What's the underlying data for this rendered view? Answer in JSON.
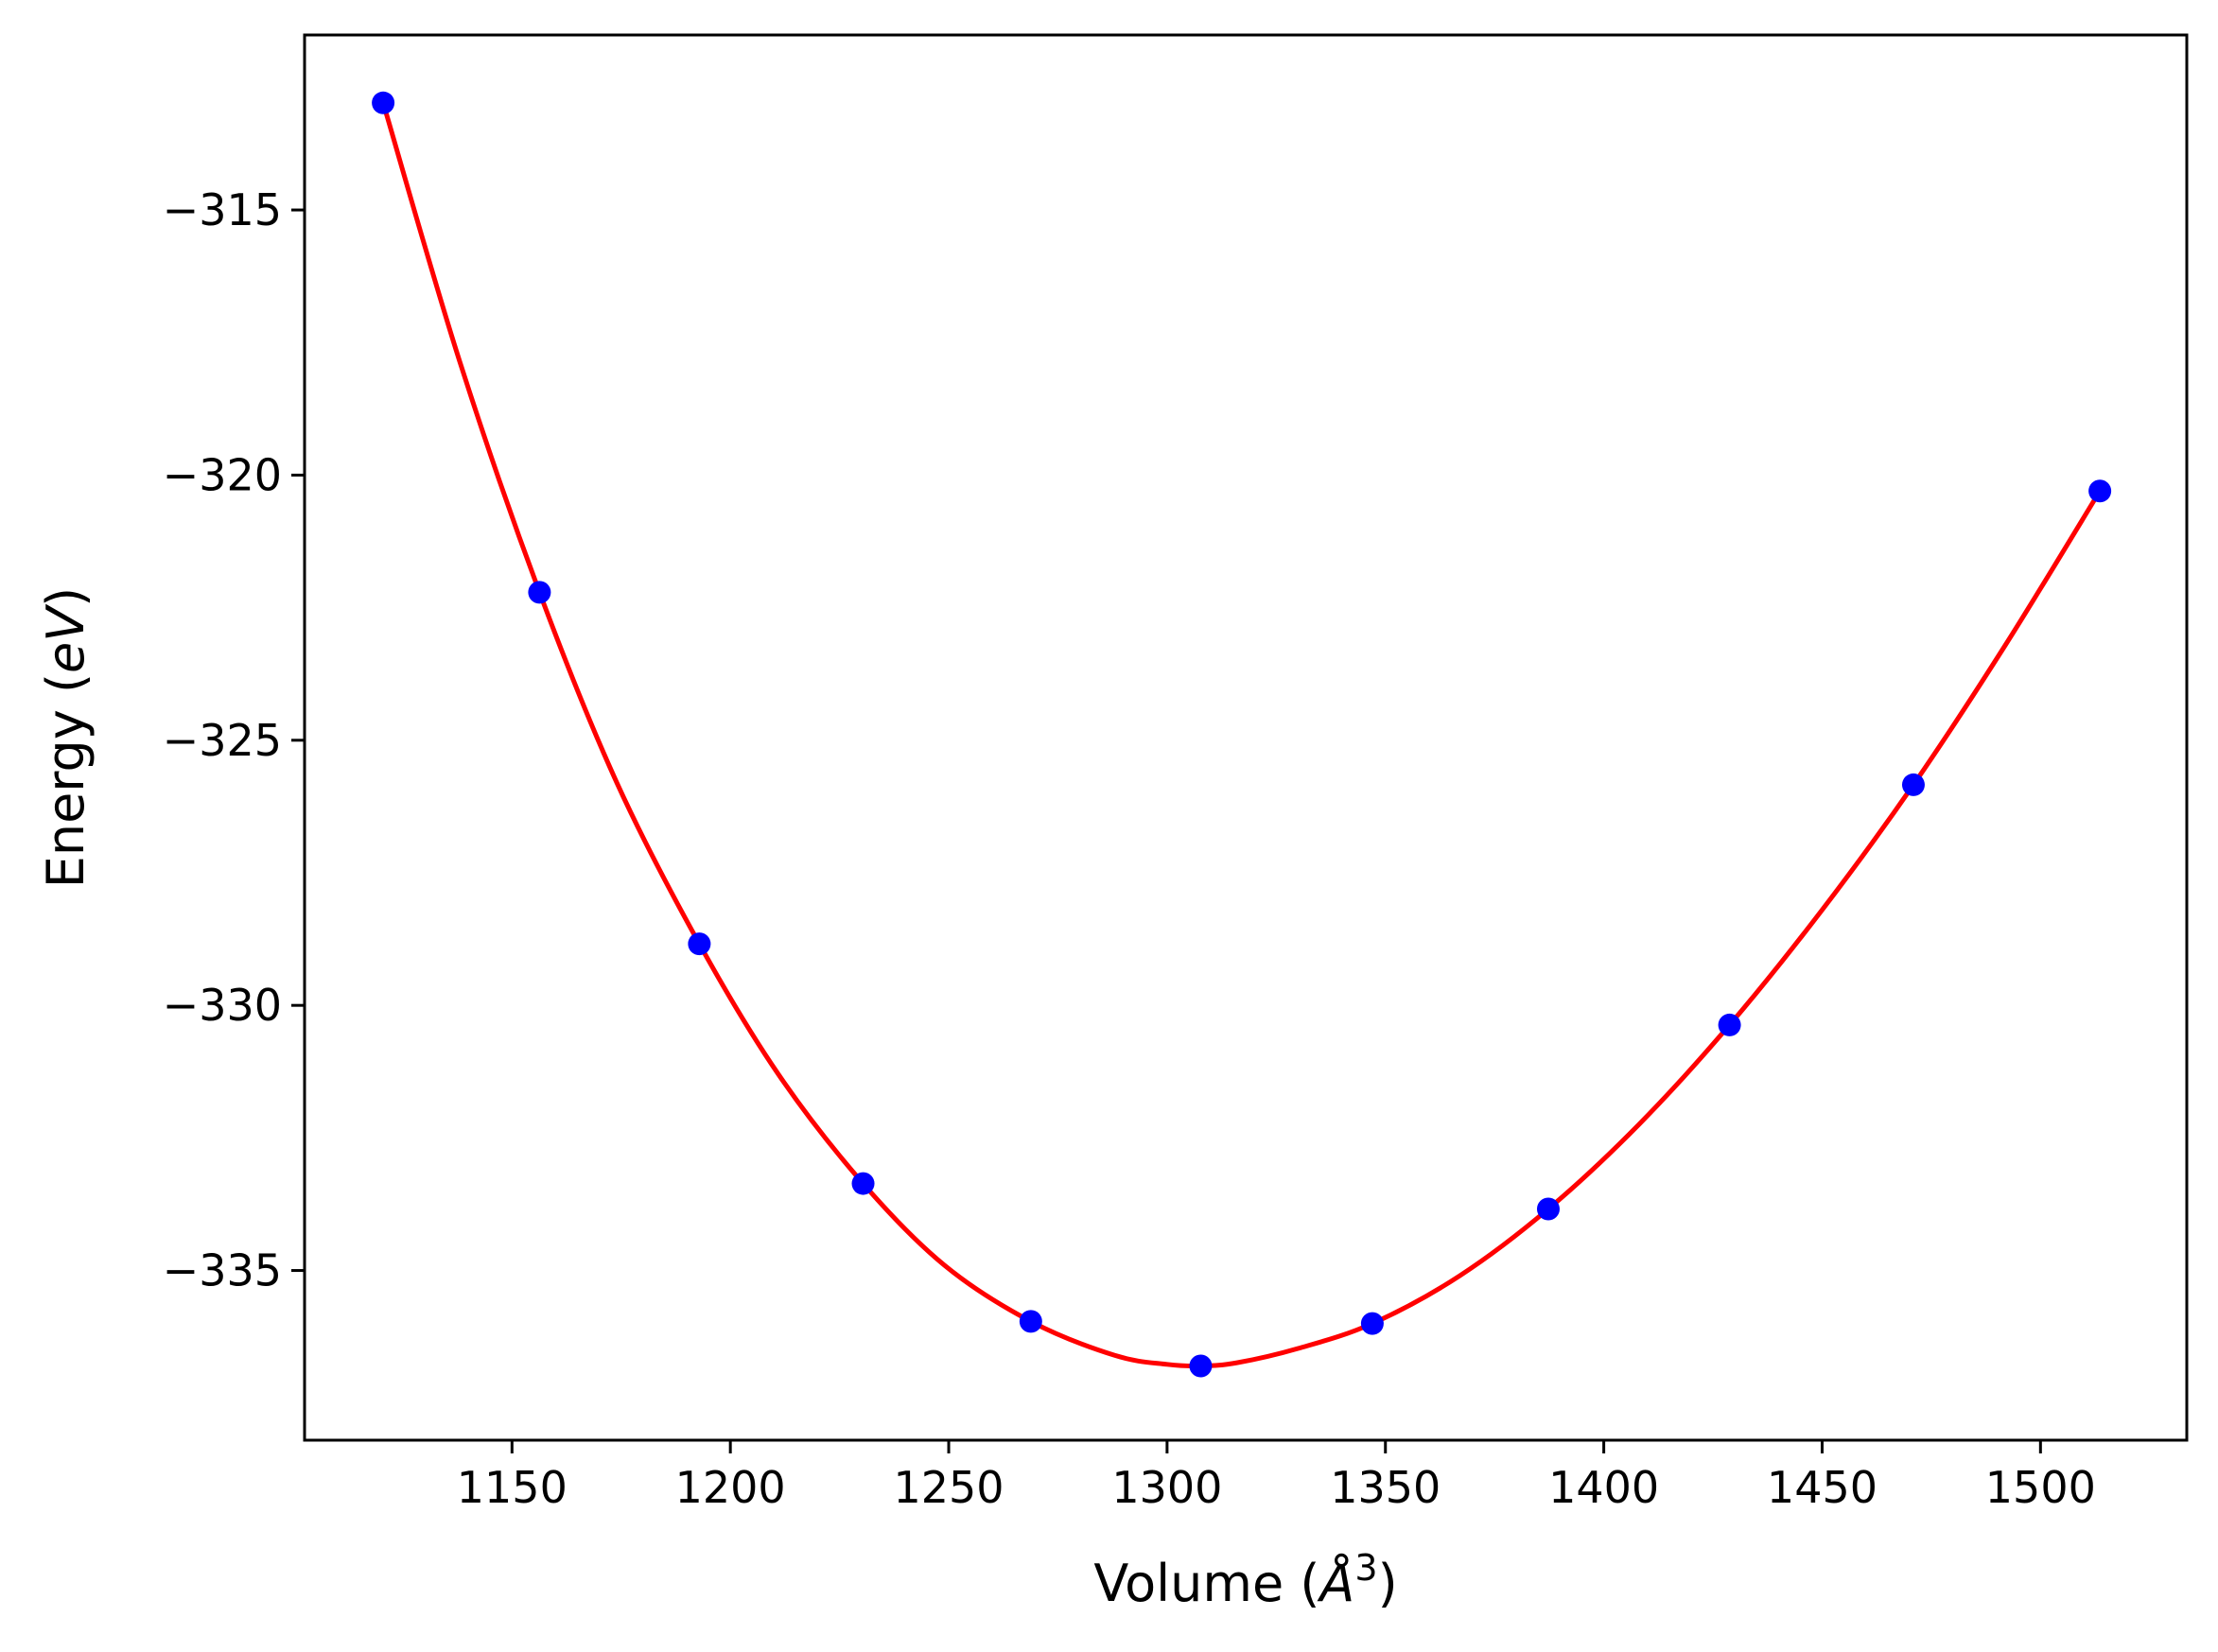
{
  "chart_data": {
    "type": "scatter",
    "title": "",
    "xlabel": "Volume",
    "xlabel_unit": "Å",
    "xlabel_unit_exp": "3",
    "ylabel": "Energy",
    "ylabel_unit": "eV",
    "xlim": [
      1102.5,
      1533.5
    ],
    "ylim": [
      -338.2,
      -311.7
    ],
    "xticks": [
      {
        "value": 1150,
        "label": "1150"
      },
      {
        "value": 1200,
        "label": "1200"
      },
      {
        "value": 1250,
        "label": "1250"
      },
      {
        "value": 1300,
        "label": "1300"
      },
      {
        "value": 1350,
        "label": "1350"
      },
      {
        "value": 1400,
        "label": "1400"
      },
      {
        "value": 1450,
        "label": "1450"
      },
      {
        "value": 1500,
        "label": "1500"
      }
    ],
    "yticks": [
      {
        "value": -315,
        "label": "−315"
      },
      {
        "value": -320,
        "label": "−320"
      },
      {
        "value": -325,
        "label": "−325"
      },
      {
        "value": -330,
        "label": "−330"
      },
      {
        "value": -335,
        "label": "−335"
      }
    ],
    "grid": false,
    "legend": "none",
    "series": [
      {
        "kind": "points",
        "color": "#0000ff",
        "points": [
          {
            "x": 1120.5,
            "y": -312.98
          },
          {
            "x": 1156.3,
            "y": -322.21
          },
          {
            "x": 1192.9,
            "y": -328.84
          },
          {
            "x": 1230.4,
            "y": -333.36
          },
          {
            "x": 1268.8,
            "y": -335.96
          },
          {
            "x": 1307.7,
            "y": -336.8
          },
          {
            "x": 1347.0,
            "y": -336.0
          },
          {
            "x": 1387.3,
            "y": -333.84
          },
          {
            "x": 1428.8,
            "y": -330.37
          },
          {
            "x": 1470.9,
            "y": -325.84
          },
          {
            "x": 1513.6,
            "y": -320.3
          }
        ]
      },
      {
        "kind": "fit-curve",
        "color": "#ff0000",
        "points": [
          {
            "x": 1120.5,
            "y": -312.98
          },
          {
            "x": 1138.0,
            "y": -317.85
          },
          {
            "x": 1156.3,
            "y": -322.21
          },
          {
            "x": 1174.0,
            "y": -325.8
          },
          {
            "x": 1192.9,
            "y": -328.84
          },
          {
            "x": 1211.0,
            "y": -331.3
          },
          {
            "x": 1230.4,
            "y": -333.36
          },
          {
            "x": 1249.0,
            "y": -334.9
          },
          {
            "x": 1268.8,
            "y": -335.96
          },
          {
            "x": 1288.0,
            "y": -336.6
          },
          {
            "x": 1300.0,
            "y": -336.77
          },
          {
            "x": 1307.7,
            "y": -336.8
          },
          {
            "x": 1316.0,
            "y": -336.74
          },
          {
            "x": 1330.0,
            "y": -336.47
          },
          {
            "x": 1347.0,
            "y": -336.0
          },
          {
            "x": 1367.0,
            "y": -335.1
          },
          {
            "x": 1387.3,
            "y": -333.84
          },
          {
            "x": 1408.0,
            "y": -332.25
          },
          {
            "x": 1428.8,
            "y": -330.37
          },
          {
            "x": 1450.0,
            "y": -328.2
          },
          {
            "x": 1470.9,
            "y": -325.84
          },
          {
            "x": 1492.0,
            "y": -323.2
          },
          {
            "x": 1513.6,
            "y": -320.3
          }
        ]
      }
    ]
  }
}
